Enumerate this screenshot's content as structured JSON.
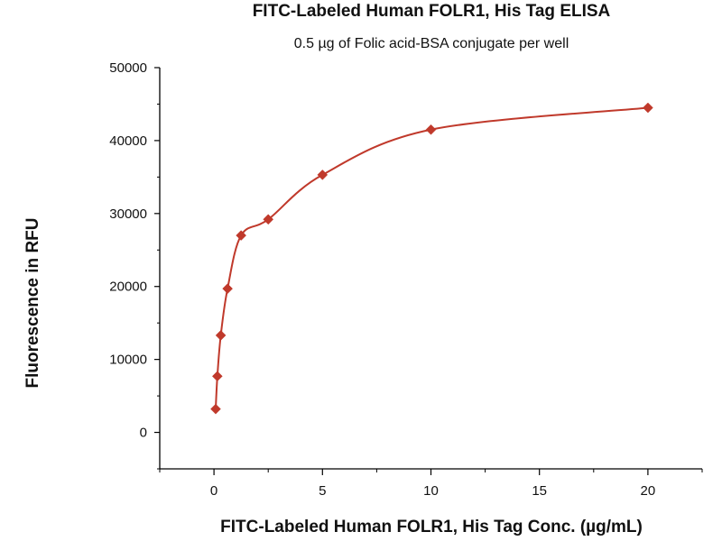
{
  "chart_data": {
    "type": "scatter",
    "title": "FITC-Labeled Human FOLR1, His Tag ELISA",
    "subtitle": "0.5 µg of Folic acid-BSA conjugate per well",
    "xlabel": "FITC-Labeled Human FOLR1, His Tag Conc. (µg/mL)",
    "ylabel": "Fluorescence in RFU",
    "xlim": [
      -2.5,
      22.5
    ],
    "ylim": [
      -5000,
      50000
    ],
    "x_ticks": [
      0,
      5,
      10,
      15,
      20
    ],
    "y_ticks": [
      0,
      10000,
      20000,
      30000,
      40000,
      50000
    ],
    "grid": false,
    "series": [
      {
        "color": "#c0392b",
        "marker": "diamond",
        "fit": "curve",
        "x": [
          0.078,
          0.156,
          0.313,
          0.625,
          1.25,
          2.5,
          5,
          10,
          20
        ],
        "y": [
          3200,
          7700,
          13300,
          19700,
          27000,
          29200,
          35300,
          41500,
          44500
        ]
      }
    ]
  }
}
